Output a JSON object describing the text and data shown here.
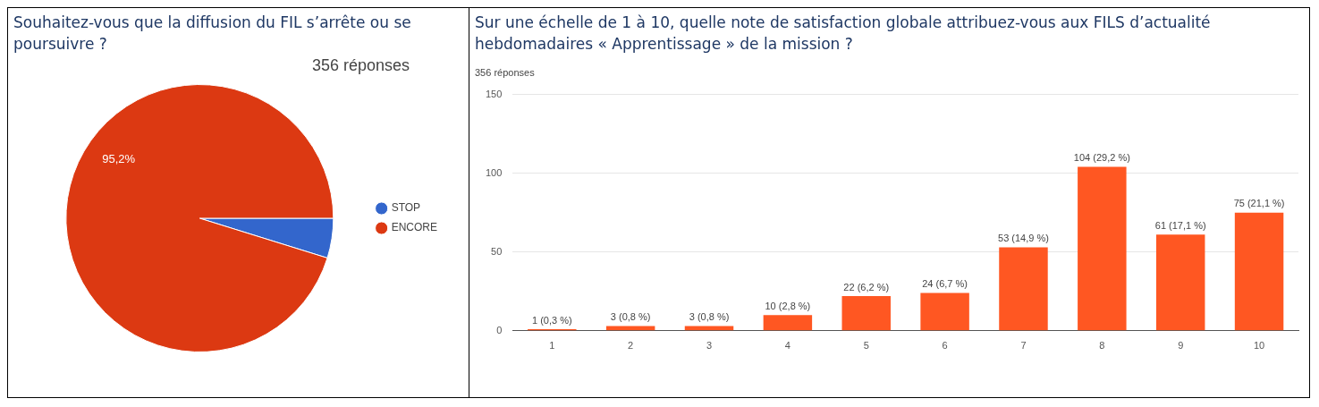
{
  "chart_data": [
    {
      "type": "pie",
      "title": "Souhaitez-vous que la diffusion du FIL s’arrête ou se poursuivre ?",
      "subtitle": "356 réponses",
      "categories": [
        "STOP",
        "ENCORE"
      ],
      "values": [
        4.8,
        95.2
      ],
      "colors": [
        "#3366cc",
        "#dc3912"
      ],
      "value_labels": [
        null,
        "95,2%"
      ],
      "legend": "right"
    },
    {
      "type": "bar",
      "title": "Sur une échelle de 1 à 10, quelle note de satisfaction globale attribuez-vous aux FILS d’actualité hebdomadaires « Apprentissage » de la mission ?",
      "subtitle": "356 réponses",
      "categories": [
        "1",
        "2",
        "3",
        "4",
        "5",
        "6",
        "7",
        "8",
        "9",
        "10"
      ],
      "values": [
        1,
        3,
        3,
        10,
        22,
        24,
        53,
        104,
        61,
        75
      ],
      "color": "#ff5722",
      "value_labels": [
        "1 (0,3 %)",
        "3 (0,8 %)",
        "3 (0,8 %)",
        "10 (2,8 %)",
        "22 (6,2 %)",
        "24 (6,7 %)",
        "53 (14,9 %)",
        "104 (29,2 %)",
        "61 (17,1 %)",
        "75 (21,1 %)"
      ],
      "ylim": [
        0,
        150
      ],
      "yticks": [
        0,
        50,
        100,
        150
      ],
      "grid": "y",
      "legend": false
    }
  ]
}
